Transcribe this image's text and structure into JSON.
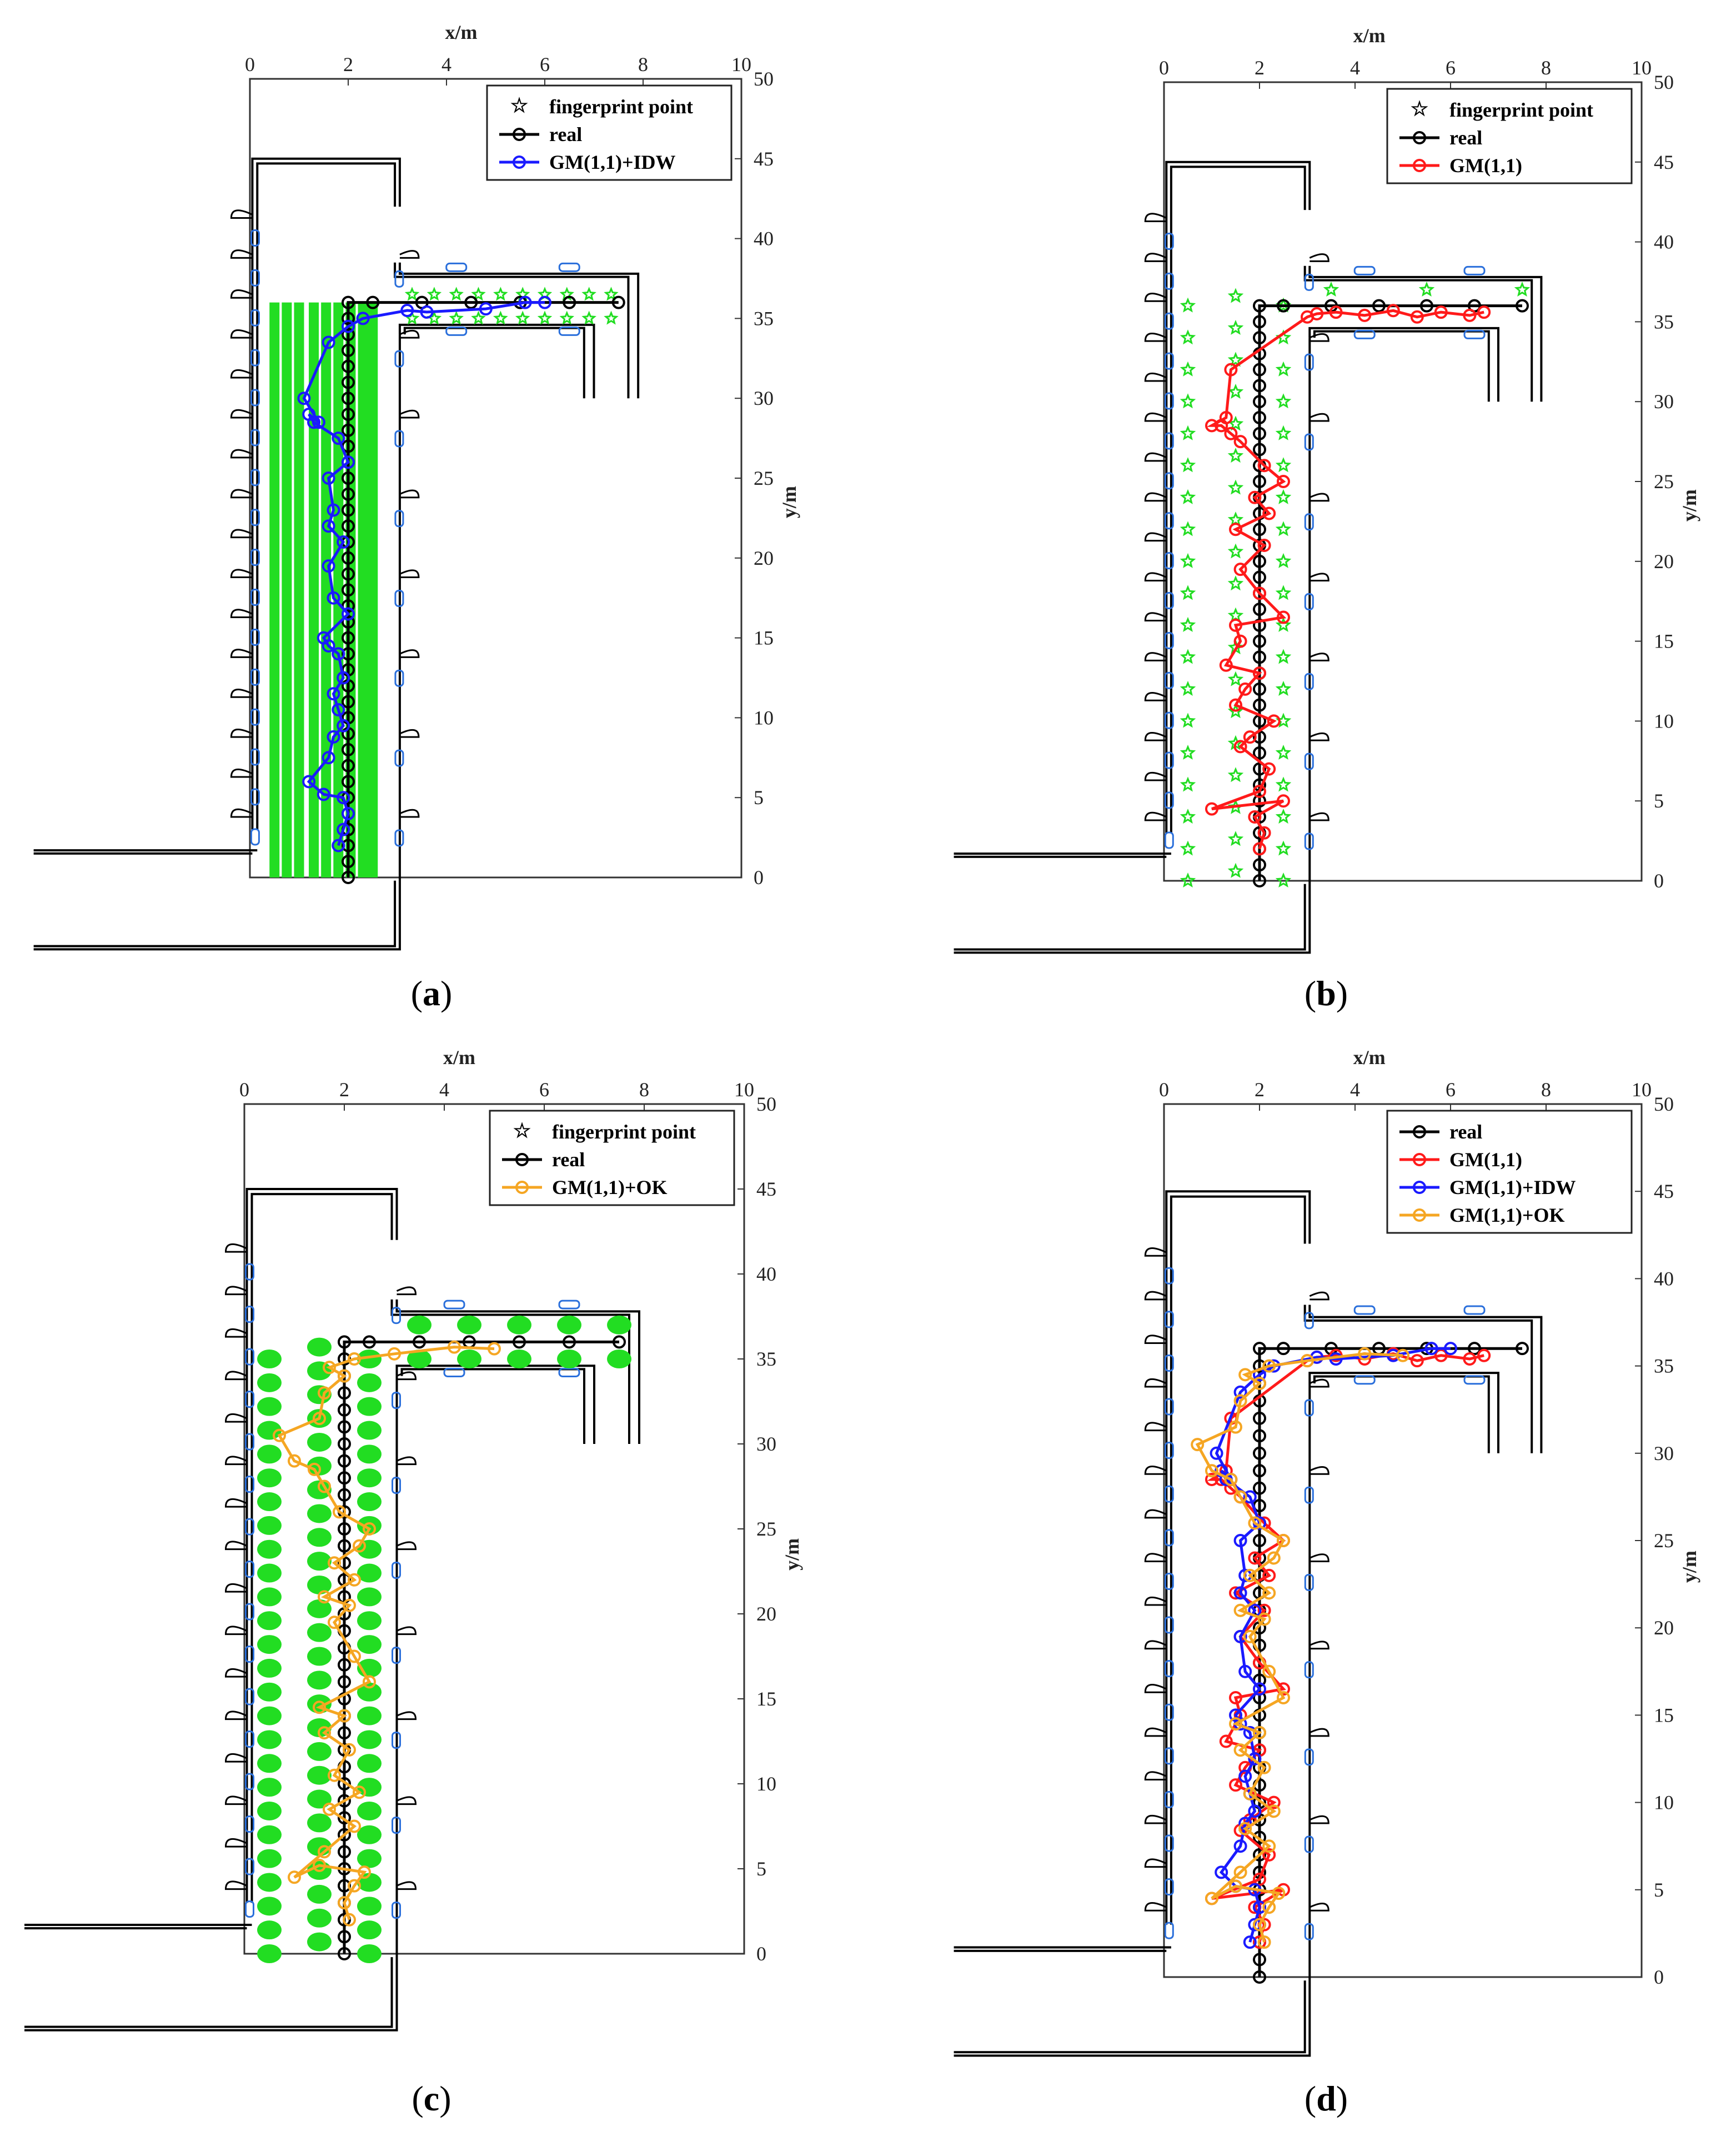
{
  "figure": {
    "panels_count": 4
  },
  "colors": {
    "fingerprint": "#22dd22",
    "real": "#000000",
    "gm": "#ff1a1a",
    "idw": "#1a1aff",
    "ok": "#f5a623",
    "wall": "#000000",
    "door_window": "#2a6fdb"
  },
  "chart_data": [
    {
      "id": "a",
      "caption_open": "(",
      "caption_letter": "a",
      "caption_close": ")",
      "type": "line",
      "xlabel": "x/m",
      "ylabel": "y/m",
      "xlim": [
        0,
        10
      ],
      "ylim": [
        0,
        50
      ],
      "xticks": [
        "0",
        "2",
        "4",
        "6",
        "8",
        "10"
      ],
      "yticks": [
        "0",
        "5",
        "10",
        "15",
        "20",
        "25",
        "30",
        "35",
        "40",
        "45",
        "50"
      ],
      "fingerprint_style": "dense",
      "legend": [
        {
          "label": "fingerprint point",
          "key": "fingerprint"
        },
        {
          "label": "real",
          "key": "real"
        },
        {
          "label": "GM(1,1)+IDW",
          "key": "idw"
        }
      ],
      "series": [
        {
          "name": "real",
          "key": "real",
          "x": [
            2,
            2,
            2,
            2,
            2,
            2,
            2,
            2,
            2,
            2,
            2,
            2,
            2,
            2,
            2,
            2,
            2,
            2,
            2,
            2,
            2,
            2,
            2,
            2,
            2,
            2,
            2,
            2,
            2,
            2,
            2,
            2,
            2,
            2,
            2,
            2,
            2,
            2.5,
            3.5,
            4.5,
            5.5,
            6.5,
            7.5
          ],
          "y": [
            0,
            1,
            2,
            3,
            4,
            5,
            6,
            7,
            8,
            9,
            10,
            11,
            12,
            13,
            14,
            15,
            16,
            17,
            18,
            19,
            20,
            21,
            22,
            23,
            24,
            25,
            26,
            27,
            28,
            29,
            30,
            31,
            32,
            33,
            34,
            35,
            36,
            36,
            36,
            36,
            36,
            36,
            36
          ]
        },
        {
          "name": "GM(1,1)+IDW",
          "key": "idw",
          "x": [
            1.8,
            1.9,
            2.0,
            1.9,
            1.5,
            1.2,
            1.6,
            1.7,
            1.9,
            1.8,
            1.7,
            1.9,
            1.8,
            1.6,
            1.5,
            2.0,
            1.7,
            1.6,
            1.9,
            1.6,
            1.7,
            1.6,
            2.0,
            1.8,
            1.3,
            1.2,
            1.4,
            1.1,
            1.6,
            2.0,
            2.3,
            3.2,
            3.6,
            4.8,
            5.6,
            6.0
          ],
          "y": [
            2,
            3,
            4,
            5,
            5.2,
            6,
            7.5,
            8.8,
            9.5,
            10.5,
            11.5,
            12.5,
            14,
            14.5,
            15,
            16.5,
            17.5,
            19.5,
            21,
            22,
            23,
            25,
            26,
            27.5,
            28.5,
            29,
            28.5,
            30,
            33.5,
            34.5,
            35,
            35.5,
            35.4,
            35.6,
            36,
            36
          ]
        }
      ]
    },
    {
      "id": "b",
      "caption_open": "(",
      "caption_letter": "b",
      "caption_close": ")",
      "type": "line",
      "xlabel": "x/m",
      "ylabel": "y/m",
      "xlim": [
        0,
        10
      ],
      "ylim": [
        0,
        50
      ],
      "xticks": [
        "0",
        "2",
        "4",
        "6",
        "8",
        "10"
      ],
      "yticks": [
        "0",
        "5",
        "10",
        "15",
        "20",
        "25",
        "30",
        "35",
        "40",
        "45",
        "50"
      ],
      "fingerprint_style": "sparse",
      "legend": [
        {
          "label": "fingerprint point",
          "key": "fingerprint"
        },
        {
          "label": "real",
          "key": "real"
        },
        {
          "label": "GM(1,1)",
          "key": "gm"
        }
      ],
      "series": [
        {
          "name": "real",
          "key": "real",
          "x": [
            2,
            2,
            2,
            2,
            2,
            2,
            2,
            2,
            2,
            2,
            2,
            2,
            2,
            2,
            2,
            2,
            2,
            2,
            2,
            2,
            2,
            2,
            2,
            2,
            2,
            2,
            2,
            2,
            2,
            2,
            2,
            2,
            2,
            2,
            2,
            2,
            2,
            2.5,
            3.5,
            4.5,
            5.5,
            6.5,
            7.5
          ],
          "y": [
            0,
            1,
            2,
            3,
            4,
            5,
            6,
            7,
            8,
            9,
            10,
            11,
            12,
            13,
            14,
            15,
            16,
            17,
            18,
            19,
            20,
            21,
            22,
            23,
            24,
            25,
            26,
            27,
            28,
            29,
            30,
            31,
            32,
            33,
            34,
            35,
            36,
            36,
            36,
            36,
            36,
            36,
            36
          ]
        },
        {
          "name": "GM(1,1)",
          "key": "gm",
          "x": [
            2.0,
            2.1,
            1.9,
            2.5,
            1.0,
            2.0,
            2.2,
            1.6,
            1.8,
            2.3,
            1.5,
            1.7,
            2.0,
            1.3,
            1.6,
            1.5,
            2.5,
            2.0,
            1.6,
            2.1,
            1.5,
            2.2,
            1.9,
            2.5,
            2.1,
            1.6,
            1.4,
            1.2,
            1.0,
            1.3,
            1.4,
            3.0,
            3.2,
            3.6,
            4.2,
            4.8,
            5.3,
            5.8,
            6.4,
            6.7
          ],
          "y": [
            2,
            3,
            4,
            5,
            4.5,
            5.6,
            7,
            8.4,
            9,
            10,
            11,
            12,
            13,
            13.5,
            15,
            16,
            16.5,
            18,
            19.5,
            21,
            22,
            23,
            24,
            25,
            26,
            27.5,
            28,
            28.5,
            28.5,
            29,
            32,
            35.3,
            35.5,
            35.6,
            35.4,
            35.7,
            35.3,
            35.6,
            35.4,
            35.6
          ]
        }
      ]
    },
    {
      "id": "c",
      "caption_open": "(",
      "caption_letter": "c",
      "caption_close": ")",
      "type": "line",
      "xlabel": "x/m",
      "ylabel": "y/m",
      "xlim": [
        0,
        10
      ],
      "ylim": [
        0,
        50
      ],
      "xticks": [
        "0",
        "2",
        "4",
        "6",
        "8",
        "10"
      ],
      "yticks": [
        "0",
        "5",
        "10",
        "15",
        "20",
        "25",
        "30",
        "35",
        "40",
        "45",
        "50"
      ],
      "fingerprint_style": "blobs",
      "legend": [
        {
          "label": "fingerprint point",
          "key": "fingerprint"
        },
        {
          "label": "real",
          "key": "real"
        },
        {
          "label": "GM(1,1)+OK",
          "key": "ok"
        }
      ],
      "series": [
        {
          "name": "real",
          "key": "real",
          "x": [
            2,
            2,
            2,
            2,
            2,
            2,
            2,
            2,
            2,
            2,
            2,
            2,
            2,
            2,
            2,
            2,
            2,
            2,
            2,
            2,
            2,
            2,
            2,
            2,
            2,
            2,
            2,
            2,
            2,
            2,
            2,
            2,
            2,
            2,
            2,
            2,
            2,
            2.5,
            3.5,
            4.5,
            5.5,
            6.5,
            7.5
          ],
          "y": [
            0,
            1,
            2,
            3,
            4,
            5,
            6,
            7,
            8,
            9,
            10,
            11,
            12,
            13,
            14,
            15,
            16,
            17,
            18,
            19,
            20,
            21,
            22,
            23,
            24,
            25,
            26,
            27,
            28,
            29,
            30,
            31,
            32,
            33,
            34,
            35,
            36,
            36,
            36,
            36,
            36,
            36,
            36
          ]
        },
        {
          "name": "GM(1,1)+OK",
          "key": "ok",
          "x": [
            2.1,
            2.0,
            2.2,
            2.4,
            1.5,
            1.0,
            1.6,
            2.2,
            1.7,
            2.3,
            1.8,
            2.1,
            1.6,
            2.0,
            1.5,
            2.5,
            2.2,
            1.8,
            2.1,
            1.6,
            2.2,
            1.8,
            2.3,
            2.5,
            1.9,
            1.6,
            1.4,
            1.0,
            0.7,
            1.5,
            1.6,
            2.0,
            1.7,
            2.2,
            3.0,
            4.2,
            5.0
          ],
          "y": [
            2,
            3,
            4,
            4.8,
            5.2,
            4.5,
            6,
            7.5,
            8.5,
            9.5,
            10.5,
            12,
            13,
            14,
            14.5,
            16,
            17.5,
            19.5,
            20.5,
            21,
            22,
            23,
            24,
            25,
            26,
            27.5,
            28.5,
            29,
            30.5,
            31.5,
            33,
            34,
            34.5,
            35,
            35.3,
            35.7,
            35.6
          ]
        }
      ]
    },
    {
      "id": "d",
      "caption_open": "(",
      "caption_letter": "d",
      "caption_close": ")",
      "type": "line",
      "xlabel": "x/m",
      "ylabel": "y/m",
      "xlim": [
        0,
        10
      ],
      "ylim": [
        0,
        50
      ],
      "xticks": [
        "0",
        "2",
        "4",
        "6",
        "8",
        "10"
      ],
      "yticks": [
        "0",
        "5",
        "10",
        "15",
        "20",
        "25",
        "30",
        "35",
        "40",
        "45",
        "50"
      ],
      "fingerprint_style": "none",
      "legend": [
        {
          "label": "real",
          "key": "real"
        },
        {
          "label": "GM(1,1)",
          "key": "gm"
        },
        {
          "label": "GM(1,1)+IDW",
          "key": "idw"
        },
        {
          "label": "GM(1,1)+OK",
          "key": "ok"
        }
      ],
      "series": [
        {
          "name": "real",
          "key": "real",
          "x": [
            2,
            2,
            2,
            2,
            2,
            2,
            2,
            2,
            2,
            2,
            2,
            2,
            2,
            2,
            2,
            2,
            2,
            2,
            2,
            2,
            2,
            2,
            2,
            2,
            2,
            2,
            2,
            2,
            2,
            2,
            2,
            2,
            2,
            2,
            2,
            2,
            2,
            2.5,
            3.5,
            4.5,
            5.5,
            6.5,
            7.5
          ],
          "y": [
            0,
            1,
            2,
            3,
            4,
            5,
            6,
            7,
            8,
            9,
            10,
            11,
            12,
            13,
            14,
            15,
            16,
            17,
            18,
            19,
            20,
            21,
            22,
            23,
            24,
            25,
            26,
            27,
            28,
            29,
            30,
            31,
            32,
            33,
            34,
            35,
            36,
            36,
            36,
            36,
            36,
            36,
            36
          ]
        },
        {
          "name": "GM(1,1)",
          "key": "gm",
          "x": [
            2.0,
            2.1,
            1.9,
            2.5,
            1.0,
            2.0,
            2.2,
            1.6,
            1.8,
            2.3,
            1.5,
            1.7,
            2.0,
            1.3,
            1.6,
            1.5,
            2.5,
            2.0,
            1.6,
            2.1,
            1.5,
            2.2,
            1.9,
            2.5,
            2.1,
            1.6,
            1.4,
            1.2,
            1.0,
            1.3,
            1.4,
            3.0,
            3.2,
            3.6,
            4.2,
            4.8,
            5.3,
            5.8,
            6.4,
            6.7
          ],
          "y": [
            2,
            3,
            4,
            5,
            4.5,
            5.6,
            7,
            8.4,
            9,
            10,
            11,
            12,
            13,
            13.5,
            15,
            16,
            16.5,
            18,
            19.5,
            21,
            22,
            23,
            24,
            25,
            26,
            27.5,
            28,
            28.5,
            28.5,
            29,
            32,
            35.3,
            35.5,
            35.6,
            35.4,
            35.7,
            35.3,
            35.6,
            35.4,
            35.6
          ]
        },
        {
          "name": "GM(1,1)+IDW",
          "key": "idw",
          "x": [
            1.8,
            1.9,
            2.0,
            1.9,
            1.5,
            1.2,
            1.6,
            1.7,
            1.9,
            1.8,
            1.7,
            1.9,
            1.8,
            1.6,
            1.5,
            2.0,
            1.7,
            1.6,
            1.9,
            1.6,
            1.7,
            1.6,
            2.0,
            1.8,
            1.3,
            1.2,
            1.4,
            1.1,
            1.6,
            2.0,
            2.3,
            3.2,
            3.6,
            4.8,
            5.6,
            6.0
          ],
          "y": [
            2,
            3,
            4,
            5,
            5.2,
            6,
            7.5,
            8.8,
            9.5,
            10.5,
            11.5,
            12.5,
            14,
            14.5,
            15,
            16.5,
            17.5,
            19.5,
            21,
            22,
            23,
            25,
            26,
            27.5,
            28.5,
            29,
            28.5,
            30,
            33.5,
            34.5,
            35,
            35.5,
            35.4,
            35.6,
            36,
            36
          ]
        },
        {
          "name": "GM(1,1)+OK",
          "key": "ok",
          "x": [
            2.1,
            2.0,
            2.2,
            2.4,
            1.5,
            1.0,
            1.6,
            2.2,
            1.7,
            2.3,
            1.8,
            2.1,
            1.6,
            2.0,
            1.5,
            2.5,
            2.2,
            1.8,
            2.1,
            1.6,
            2.2,
            1.8,
            2.3,
            2.5,
            1.9,
            1.6,
            1.4,
            1.0,
            0.7,
            1.5,
            1.6,
            2.0,
            1.7,
            2.2,
            3.0,
            4.2,
            5.0
          ],
          "y": [
            2,
            3,
            4,
            4.8,
            5.2,
            4.5,
            6,
            7.5,
            8.5,
            9.5,
            10.5,
            12,
            13,
            14,
            14.5,
            16,
            17.5,
            19.5,
            20.5,
            21,
            22,
            23,
            24,
            25,
            26,
            27.5,
            28.5,
            29,
            30.5,
            31.5,
            33,
            34,
            34.5,
            35,
            35.3,
            35.7,
            35.6
          ]
        }
      ]
    }
  ]
}
